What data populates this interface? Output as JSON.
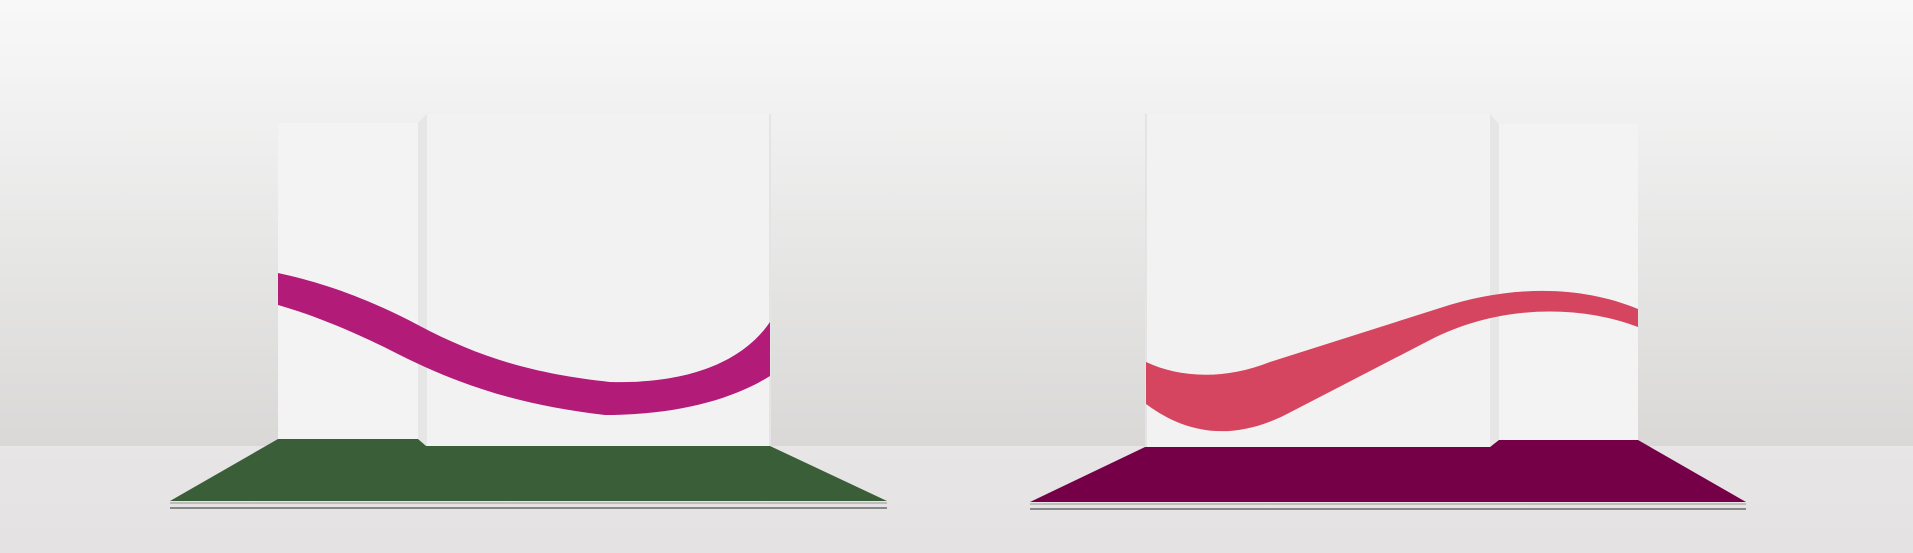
{
  "scene": {
    "description_colors": {
      "wall_top": "#f7f7f7",
      "wall_bottom": "#d9d8d7",
      "floor": "#e6e4e4",
      "panel": "#f2f2f2",
      "panel_edge": "#e2e2e2"
    }
  },
  "displays": [
    {
      "label": "left-display",
      "base_color": "#3a5e38",
      "ribbon_color": "#b21b78"
    },
    {
      "label": "right-display",
      "base_color": "#760047",
      "ribbon_color": "#d6455f"
    }
  ]
}
